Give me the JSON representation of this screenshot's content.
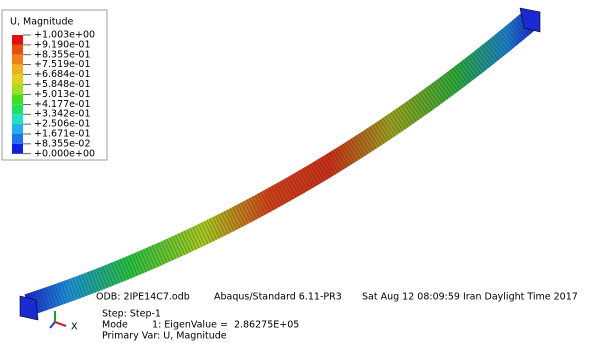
{
  "legend": {
    "title": "U, Magnitude",
    "labels": [
      "+1.003e+00",
      "+9.190e-01",
      "+8.355e-01",
      "+7.519e-01",
      "+6.684e-01",
      "+5.848e-01",
      "+5.013e-01",
      "+4.177e-01",
      "+3.342e-01",
      "+2.506e-01",
      "+1.671e-01",
      "+8.355e-02",
      "+0.000e+00"
    ]
  },
  "info": {
    "odb": "ODB: 2IPE14C7.odb",
    "solver": "Abaqus/Standard 6.11-PR3",
    "date": "Sat Aug 12 08:09:59 Iran Daylight Time 2017",
    "step": "Step: Step-1",
    "mode": "Mode        1: EigenValue =  2.86275E+05",
    "primary_var": "Primary Var: U, Magnitude"
  },
  "triad": {
    "x_label": "X"
  }
}
